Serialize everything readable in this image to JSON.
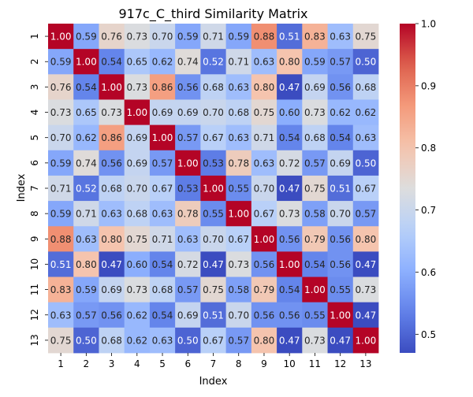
{
  "chart_data": {
    "type": "heatmap",
    "title": "917c_C_third Similarity Matrix",
    "xlabel": "Index",
    "ylabel": "Index",
    "x_categories": [
      "1",
      "2",
      "3",
      "4",
      "5",
      "6",
      "7",
      "8",
      "9",
      "10",
      "11",
      "12",
      "13"
    ],
    "y_categories": [
      "1",
      "2",
      "3",
      "4",
      "5",
      "6",
      "7",
      "8",
      "9",
      "10",
      "11",
      "12",
      "13"
    ],
    "values": [
      [
        1.0,
        0.59,
        0.76,
        0.73,
        0.7,
        0.59,
        0.71,
        0.59,
        0.88,
        0.51,
        0.83,
        0.63,
        0.75
      ],
      [
        0.59,
        1.0,
        0.54,
        0.65,
        0.62,
        0.74,
        0.52,
        0.71,
        0.63,
        0.8,
        0.59,
        0.57,
        0.5
      ],
      [
        0.76,
        0.54,
        1.0,
        0.73,
        0.86,
        0.56,
        0.68,
        0.63,
        0.8,
        0.47,
        0.69,
        0.56,
        0.68
      ],
      [
        0.73,
        0.65,
        0.73,
        1.0,
        0.69,
        0.69,
        0.7,
        0.68,
        0.75,
        0.6,
        0.73,
        0.62,
        0.62
      ],
      [
        0.7,
        0.62,
        0.86,
        0.69,
        1.0,
        0.57,
        0.67,
        0.63,
        0.71,
        0.54,
        0.68,
        0.54,
        0.63
      ],
      [
        0.59,
        0.74,
        0.56,
        0.69,
        0.57,
        1.0,
        0.53,
        0.78,
        0.63,
        0.72,
        0.57,
        0.69,
        0.5
      ],
      [
        0.71,
        0.52,
        0.68,
        0.7,
        0.67,
        0.53,
        1.0,
        0.55,
        0.7,
        0.47,
        0.75,
        0.51,
        0.67
      ],
      [
        0.59,
        0.71,
        0.63,
        0.68,
        0.63,
        0.78,
        0.55,
        1.0,
        0.67,
        0.73,
        0.58,
        0.7,
        0.57
      ],
      [
        0.88,
        0.63,
        0.8,
        0.75,
        0.71,
        0.63,
        0.7,
        0.67,
        1.0,
        0.56,
        0.79,
        0.56,
        0.8
      ],
      [
        0.51,
        0.8,
        0.47,
        0.6,
        0.54,
        0.72,
        0.47,
        0.73,
        0.56,
        1.0,
        0.54,
        0.56,
        0.47
      ],
      [
        0.83,
        0.59,
        0.69,
        0.73,
        0.68,
        0.57,
        0.75,
        0.58,
        0.79,
        0.54,
        1.0,
        0.55,
        0.73
      ],
      [
        0.63,
        0.57,
        0.56,
        0.62,
        0.54,
        0.69,
        0.51,
        0.7,
        0.56,
        0.56,
        0.55,
        1.0,
        0.47
      ],
      [
        0.75,
        0.5,
        0.68,
        0.62,
        0.63,
        0.5,
        0.67,
        0.57,
        0.8,
        0.47,
        0.73,
        0.47,
        1.0
      ]
    ],
    "value_format": "0.00",
    "colormap": "coolwarm",
    "color_range": [
      0.47,
      1.0
    ],
    "colorbar_ticks": [
      0.5,
      0.6,
      0.7,
      0.8,
      0.9,
      1.0
    ],
    "colorbar_tick_labels": [
      "0.5",
      "0.6",
      "0.7",
      "0.8",
      "0.9",
      "1.0"
    ],
    "colors": {
      "low": "#3b4cc0",
      "mid": "#dddddd",
      "high": "#b40426",
      "annotation_dark_bg_text": "#ffffff",
      "annotation_light_bg_text": "#262626"
    }
  }
}
